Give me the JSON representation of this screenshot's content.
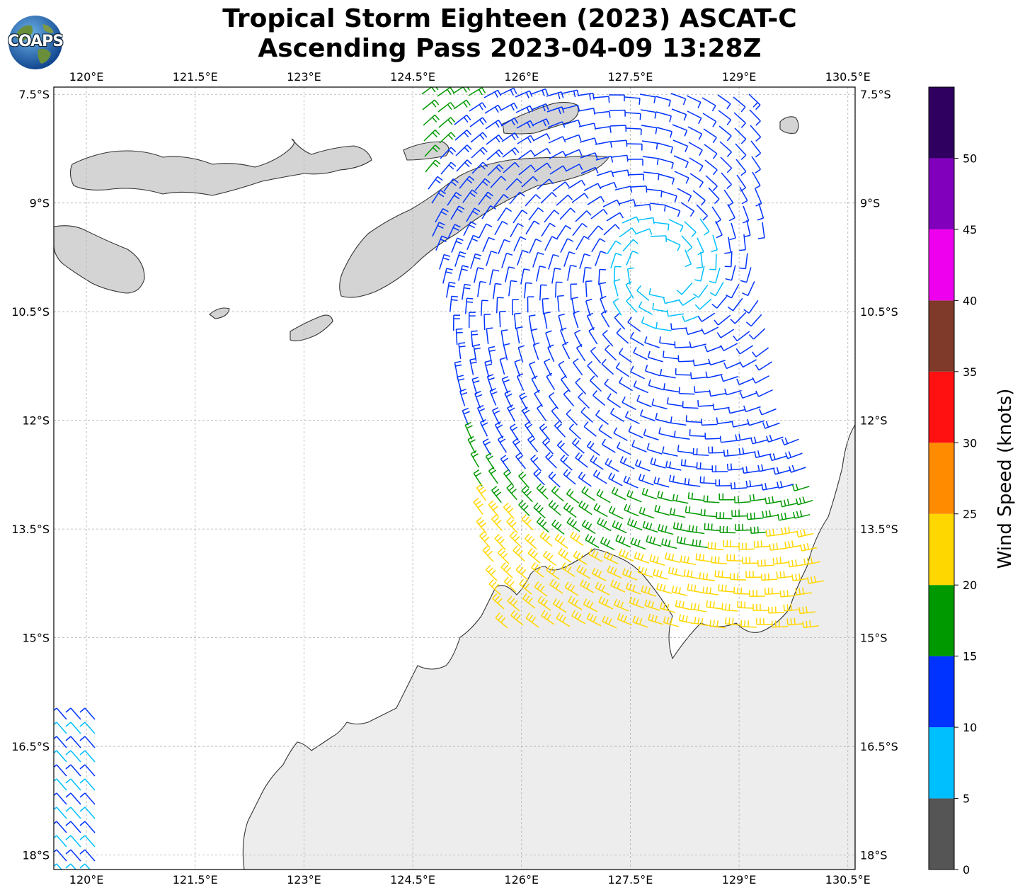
{
  "title": {
    "line1": "Tropical Storm Eighteen (2023) ASCAT-C",
    "line2": "Ascending Pass 2023-04-09 13:28Z"
  },
  "logo": {
    "text": "COAPS",
    "icon": "globe-icon"
  },
  "map": {
    "lon_ticks": [
      120,
      121.5,
      123,
      124.5,
      126,
      127.5,
      129,
      130.5
    ],
    "lon_labels": [
      "120°E",
      "121.5°E",
      "123°E",
      "124.5°E",
      "126°E",
      "127.5°E",
      "129°E",
      "130.5°E"
    ],
    "lat_ticks": [
      -7.5,
      -9,
      -10.5,
      -12,
      -13.5,
      -15,
      -16.5,
      -18
    ],
    "lat_labels": [
      "7.5°S",
      "9°S",
      "10.5°S",
      "12°S",
      "13.5°S",
      "15°S",
      "16.5°S",
      "18°S"
    ],
    "lon_range": [
      119.55,
      130.6
    ],
    "lat_range": [
      -18.2,
      -7.4
    ],
    "gridlines": true,
    "land_color": "#d9d9d9",
    "coast_color": "#333333"
  },
  "colorbar": {
    "label": "Wind Speed (knots)",
    "ticks": [
      "0",
      "5",
      "10",
      "15",
      "20",
      "25",
      "30",
      "35",
      "40",
      "45",
      "50"
    ],
    "max": 55,
    "colors": [
      "#555555",
      "#00bfff",
      "#0033ff",
      "#009900",
      "#ffd700",
      "#ff8c00",
      "#ff1111",
      "#7f3a2a",
      "#ee00ee",
      "#8000bb",
      "#2f005f"
    ]
  }
}
